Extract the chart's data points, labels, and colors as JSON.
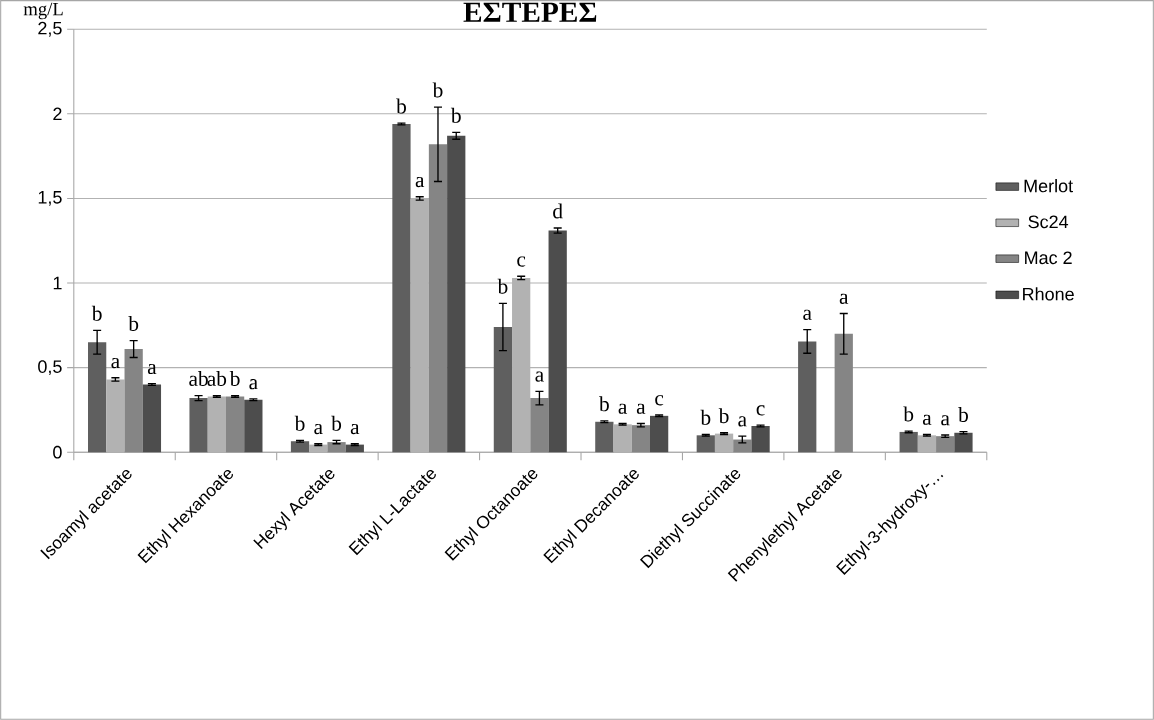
{
  "chart_data": {
    "type": "bar",
    "title": "ΕΣΤΕΡΕΣ",
    "ylabel": "mg/L",
    "categories": [
      "Isoamyl acetate",
      "Ethyl Hexanoate",
      "Hexyl Acetate",
      "Ethyl L-Lactate",
      "Ethyl Octanoate",
      "Ethyl Decanoate",
      "Diethyl Succinate",
      "Phenylethyl Acetate",
      "Ethyl-3-hydroxy-…"
    ],
    "series": [
      {
        "name": "Merlot",
        "color": "#5f5f5f",
        "values": [
          0.65,
          0.32,
          0.065,
          1.94,
          0.74,
          0.18,
          0.1,
          0.655,
          0.12
        ],
        "errors": [
          0.07,
          0.015,
          0.005,
          0.005,
          0.14,
          0.005,
          0.005,
          0.07,
          0.005
        ],
        "value_labels": [
          "b",
          "ab",
          "b",
          "b",
          "b",
          "b",
          "b",
          "a",
          "b"
        ]
      },
      {
        "name": "Sc24",
        "color": "#b2b2b2",
        "values": [
          0.43,
          0.33,
          0.045,
          1.5,
          1.03,
          0.165,
          0.11,
          null,
          0.1
        ],
        "errors": [
          0.01,
          0.005,
          0.005,
          0.01,
          0.01,
          0.005,
          0.005,
          null,
          0.005
        ],
        "value_labels": [
          "a",
          "ab",
          "a",
          "a",
          "c",
          "a",
          "b",
          null,
          "a"
        ]
      },
      {
        "name": "Mac 2",
        "color": "#858585",
        "values": [
          0.61,
          0.33,
          0.06,
          1.82,
          0.32,
          0.16,
          0.075,
          0.7,
          0.095
        ],
        "errors": [
          0.05,
          0.005,
          0.01,
          0.22,
          0.04,
          0.01,
          0.02,
          0.12,
          0.007
        ],
        "value_labels": [
          "b",
          "b",
          "b",
          "b",
          "a",
          "a",
          "a",
          "a",
          "a"
        ]
      },
      {
        "name": "Rhone",
        "color": "#4d4d4d",
        "values": [
          0.4,
          0.31,
          0.045,
          1.87,
          1.31,
          0.215,
          0.155,
          null,
          0.115
        ],
        "errors": [
          0.005,
          0.005,
          0.005,
          0.02,
          0.015,
          0.005,
          0.005,
          null,
          0.007
        ],
        "value_labels": [
          "a",
          "a",
          "a",
          "b",
          "d",
          "c",
          "c",
          null,
          "b"
        ]
      }
    ],
    "ylim": [
      0,
      2.5
    ],
    "yticks": [
      0,
      {
        "value": 0.5,
        "label": "0,5"
      },
      1,
      {
        "value": 1.5,
        "label": "1,5"
      },
      2,
      {
        "value": 2.5,
        "label": "2,5"
      }
    ],
    "grid": "y",
    "legend": "right"
  }
}
